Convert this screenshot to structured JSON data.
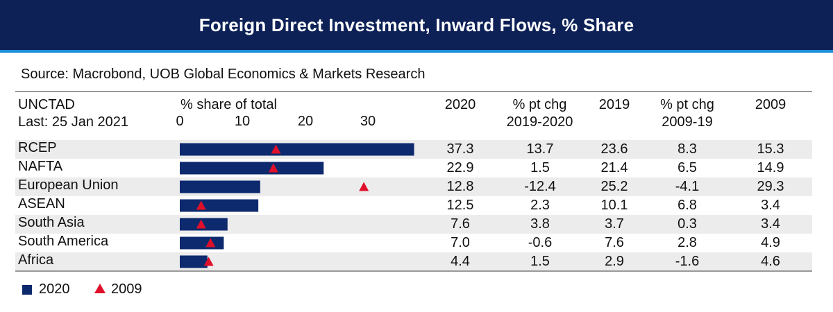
{
  "title": "Foreign Direct Investment, Inward Flows, % Share",
  "source": "Source: Macrobond, UOB Global Economics & Markets Research",
  "header": {
    "line1": "UNCTAD",
    "line2": "Last: 25 Jan 2021",
    "axis_title": "% share of total",
    "col_2020": "2020",
    "col_chg1_a": "% pt chg",
    "col_chg1_b": "2019-2020",
    "col_2019": "2019",
    "col_chg2_a": "% pt chg",
    "col_chg2_b": "2009-19",
    "col_2009": "2009"
  },
  "legend": {
    "bar_label": "2020",
    "marker_label": "2009"
  },
  "colors": {
    "header_bg": "#0d2157",
    "accent_line": "#1c8fd6",
    "bar": "#0d2a6e",
    "marker": "#e0102a"
  },
  "chart_data": {
    "type": "bar",
    "orientation": "horizontal",
    "xlim": [
      0,
      37.3
    ],
    "xticks": [
      "0",
      "10",
      "20",
      "30"
    ],
    "categories": [
      "RCEP",
      "NAFTA",
      "European Union",
      "ASEAN",
      "South Asia",
      "South America",
      "Africa"
    ],
    "series": [
      {
        "name": "2020",
        "style": "bar",
        "values": [
          37.3,
          22.9,
          12.8,
          12.5,
          7.6,
          7.0,
          4.4
        ]
      },
      {
        "name": "2009",
        "style": "triangle-marker",
        "values": [
          15.3,
          14.9,
          29.3,
          3.4,
          3.4,
          4.9,
          4.6
        ]
      }
    ]
  },
  "table": {
    "rows": [
      {
        "v2020": "37.3",
        "chg1": "13.7",
        "v2019": "23.6",
        "chg2": "8.3",
        "v2009": "15.3"
      },
      {
        "v2020": "22.9",
        "chg1": "1.5",
        "v2019": "21.4",
        "chg2": "6.5",
        "v2009": "14.9"
      },
      {
        "v2020": "12.8",
        "chg1": "-12.4",
        "v2019": "25.2",
        "chg2": "-4.1",
        "v2009": "29.3"
      },
      {
        "v2020": "12.5",
        "chg1": "2.3",
        "v2019": "10.1",
        "chg2": "6.8",
        "v2009": "3.4"
      },
      {
        "v2020": "7.6",
        "chg1": "3.8",
        "v2019": "3.7",
        "chg2": "0.3",
        "v2009": "3.4"
      },
      {
        "v2020": "7.0",
        "chg1": "-0.6",
        "v2019": "7.6",
        "chg2": "2.8",
        "v2009": "4.9"
      },
      {
        "v2020": "4.4",
        "chg1": "1.5",
        "v2019": "2.9",
        "chg2": "-1.6",
        "v2009": "4.6"
      }
    ]
  }
}
